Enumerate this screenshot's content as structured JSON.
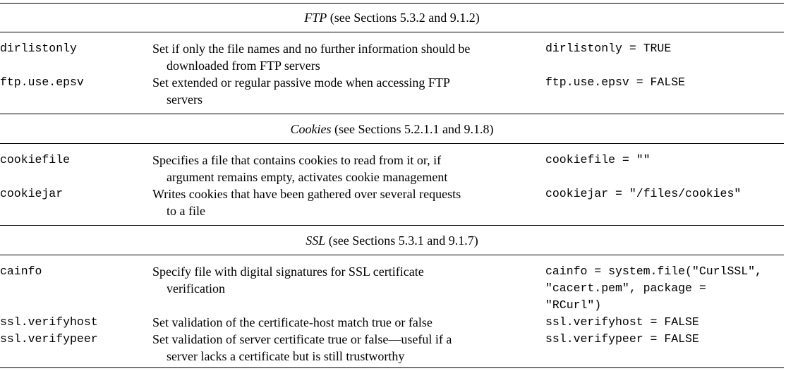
{
  "sections": [
    {
      "name": "FTP",
      "ref": "(see Sections 5.3.2 and 9.1.2)",
      "rows": [
        {
          "option": "dirlistonly",
          "description": [
            "Set if only the file names and no further information should be",
            "downloaded from FTP servers"
          ],
          "example": [
            "dirlistonly = TRUE"
          ]
        },
        {
          "option": "ftp.use.epsv",
          "description": [
            "Set extended or regular passive mode when accessing FTP",
            "servers"
          ],
          "example": [
            "ftp.use.epsv = FALSE"
          ]
        }
      ]
    },
    {
      "name": "Cookies",
      "ref": "(see Sections 5.2.1.1 and 9.1.8)",
      "rows": [
        {
          "option": "cookiefile",
          "description": [
            "Specifies a file that contains cookies to read from it or, if",
            "argument remains empty, activates cookie management"
          ],
          "example": [
            "cookiefile = \"\""
          ]
        },
        {
          "option": "cookiejar",
          "description": [
            "Writes cookies that have been gathered over several requests",
            "to a file"
          ],
          "example": [
            "cookiejar = \"/files/cookies\""
          ]
        }
      ]
    },
    {
      "name": "SSL",
      "ref": "(see Sections 5.3.1 and 9.1.7)",
      "rows": [
        {
          "option": "cainfo",
          "description": [
            "Specify file with digital signatures for SSL certificate",
            "verification"
          ],
          "example": [
            "cainfo = system.file(\"CurlSSL\",",
            "\"cacert.pem\", package =",
            "\"RCurl\")"
          ]
        },
        {
          "option": "ssl.verifyhost",
          "description": [
            "Set validation of the certificate-host match true or false"
          ],
          "example": [
            "ssl.verifyhost = FALSE"
          ]
        },
        {
          "option": "ssl.verifypeer",
          "description": [
            "Set validation of server certificate true or false—useful if a",
            "server lacks a certificate but is still trustworthy"
          ],
          "example": [
            "ssl.verifypeer = FALSE"
          ]
        }
      ]
    }
  ]
}
